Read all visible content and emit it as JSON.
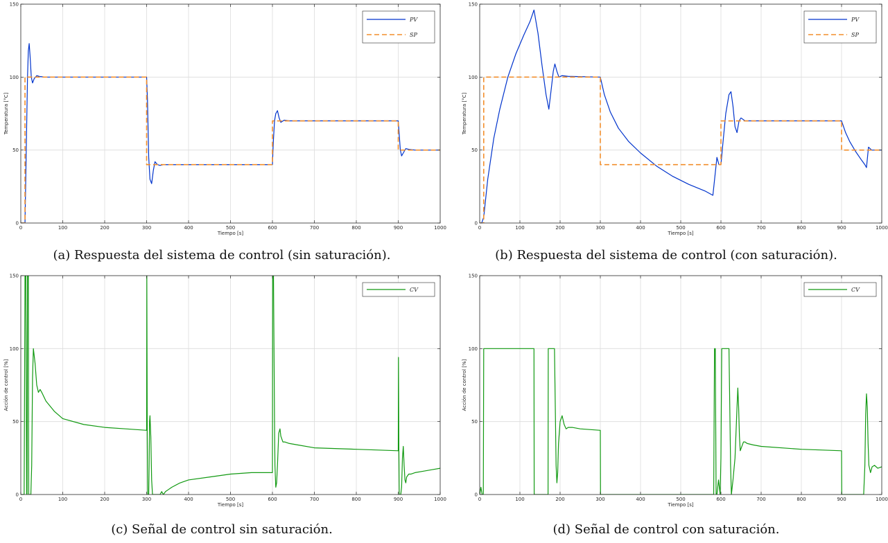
{
  "colors": {
    "pv": "#0033cc",
    "sp": "#f28e2b",
    "cv": "#119911"
  },
  "captions": [
    "(a) Respuesta del sistema de control (sin saturación).",
    "(b) Respuesta del sistema de control (con saturación).",
    "(c) Señal de control sin saturación.",
    "(d) Señal de control con saturación."
  ],
  "chart_data": [
    {
      "type": "line",
      "xlabel": "Tiempo [s]",
      "ylabel": "Temperatura [°C]",
      "xlim": [
        0,
        1000
      ],
      "ylim": [
        0,
        150
      ],
      "xticks": [
        0,
        100,
        200,
        300,
        400,
        500,
        600,
        700,
        800,
        900,
        1000
      ],
      "yticks": [
        0,
        50,
        100,
        150
      ],
      "grid": true,
      "legend": "top-right",
      "series": [
        {
          "name": "PV",
          "style": "solid",
          "color": "pv",
          "x": [
            0,
            10,
            13,
            16,
            18,
            20,
            22,
            25,
            28,
            32,
            38,
            45,
            60,
            300,
            302,
            305,
            308,
            312,
            316,
            320,
            326,
            332,
            340,
            600,
            602,
            605,
            608,
            612,
            616,
            620,
            628,
            640,
            900,
            902,
            905,
            908,
            912,
            918,
            925,
            940,
            1000
          ],
          "y": [
            0,
            0,
            50,
            100,
            118,
            123,
            115,
            100,
            96,
            99,
            101,
            100.4,
            100,
            100,
            85,
            45,
            30,
            27,
            36,
            42,
            40,
            39.5,
            40,
            40,
            55,
            70,
            75,
            77,
            72,
            69,
            70.5,
            70,
            70,
            62,
            50,
            46,
            48,
            51,
            50.5,
            50,
            50
          ]
        },
        {
          "name": "SP",
          "style": "dashed",
          "color": "sp",
          "x": [
            0,
            10,
            10,
            300,
            300,
            600,
            600,
            900,
            900,
            1000
          ],
          "y": [
            0,
            0,
            100,
            100,
            40,
            40,
            70,
            70,
            50,
            50
          ]
        }
      ]
    },
    {
      "type": "line",
      "xlabel": "Tiempo [s]",
      "ylabel": "Temperatura [°C]",
      "xlim": [
        0,
        1000
      ],
      "ylim": [
        0,
        150
      ],
      "xticks": [
        0,
        100,
        200,
        300,
        400,
        500,
        600,
        700,
        800,
        900,
        1000
      ],
      "yticks": [
        0,
        50,
        100,
        150
      ],
      "grid": true,
      "legend": "top-right",
      "series": [
        {
          "name": "PV",
          "style": "solid",
          "color": "pv",
          "x": [
            0,
            5,
            10,
            20,
            35,
            50,
            70,
            90,
            110,
            125,
            135,
            145,
            155,
            165,
            172,
            178,
            183,
            187,
            192,
            197,
            205,
            220,
            300,
            310,
            325,
            345,
            370,
            400,
            440,
            480,
            520,
            560,
            580,
            585,
            590,
            595,
            600,
            605,
            612,
            620,
            625,
            630,
            635,
            640,
            645,
            650,
            660,
            680,
            900,
            910,
            920,
            935,
            950,
            958,
            962,
            967,
            975,
            985,
            1000
          ],
          "y": [
            0,
            0,
            4,
            30,
            58,
            78,
            100,
            116,
            129,
            138,
            146,
            130,
            108,
            88,
            78,
            92,
            104,
            109,
            104,
            100,
            101,
            100.5,
            100,
            88,
            76,
            65,
            56,
            48,
            39,
            32,
            26.5,
            22,
            19,
            32,
            45,
            40,
            40,
            55,
            75,
            88,
            90,
            80,
            66,
            62,
            70,
            72,
            70,
            70,
            70,
            62,
            56,
            49,
            43,
            40,
            38,
            52,
            50,
            50,
            50
          ]
        },
        {
          "name": "SP",
          "style": "dashed",
          "color": "sp",
          "x": [
            0,
            10,
            10,
            300,
            300,
            600,
            600,
            900,
            900,
            1000
          ],
          "y": [
            0,
            0,
            100,
            100,
            40,
            40,
            70,
            70,
            50,
            50
          ]
        }
      ]
    },
    {
      "type": "line",
      "xlabel": "Tiempo [s]",
      "ylabel": "Acción de control [%]",
      "xlim": [
        0,
        1000
      ],
      "ylim": [
        0,
        150
      ],
      "xticks": [
        0,
        100,
        200,
        300,
        400,
        500,
        600,
        700,
        800,
        900,
        1000
      ],
      "yticks": [
        0,
        50,
        100,
        150
      ],
      "grid": true,
      "legend": "top-right",
      "series": [
        {
          "name": "CV",
          "style": "solid",
          "color": "cv",
          "x": [
            0,
            2,
            4,
            6,
            8,
            10,
            12,
            14,
            15,
            16,
            17,
            18,
            19,
            20,
            22,
            24,
            26,
            28,
            30,
            34,
            38,
            42,
            46,
            50,
            60,
            80,
            100,
            150,
            200,
            250,
            300,
            300.5,
            301.5,
            302.5,
            303.5,
            305,
            306,
            307,
            308,
            310,
            312,
            314,
            316,
            318,
            320,
            325,
            332,
            334,
            336,
            338,
            340,
            345,
            350,
            360,
            380,
            400,
            450,
            500,
            550,
            600,
            600.5,
            601.5,
            602.5,
            603,
            604,
            605,
            606,
            608,
            610,
            612,
            615,
            618,
            620,
            625,
            630,
            640,
            660,
            700,
            800,
            900,
            900.5,
            901.5,
            902.5,
            904,
            906,
            908,
            910,
            912,
            914,
            916,
            918,
            920,
            925,
            930,
            940,
            960,
            980,
            1000
          ],
          "y": [
            0,
            0,
            0,
            0,
            0,
            150,
            150,
            0,
            0,
            150,
            150,
            150,
            0,
            0,
            0,
            0,
            20,
            80,
            100,
            90,
            75,
            70,
            72,
            70,
            64,
            57,
            52,
            48,
            46,
            45,
            44,
            150,
            40,
            0,
            0,
            0,
            20,
            50,
            54,
            40,
            10,
            0,
            0,
            0,
            0,
            0,
            0,
            1,
            2,
            1,
            0,
            2,
            3,
            5,
            8,
            10,
            12,
            14,
            15,
            15,
            150,
            150,
            150,
            130,
            90,
            50,
            20,
            5,
            8,
            20,
            42,
            45,
            40,
            36,
            36,
            35,
            34,
            32,
            31,
            30,
            94,
            30,
            0,
            0,
            0,
            5,
            25,
            33,
            20,
            10,
            8,
            12,
            14,
            14,
            15,
            16,
            17,
            18
          ]
        }
      ]
    },
    {
      "type": "line",
      "xlabel": "Tiempo [s]",
      "ylabel": "Acción de control [%]",
      "xlim": [
        0,
        1000
      ],
      "ylim": [
        0,
        150
      ],
      "xticks": [
        0,
        100,
        200,
        300,
        400,
        500,
        600,
        700,
        800,
        900,
        1000
      ],
      "yticks": [
        0,
        50,
        100,
        150
      ],
      "grid": true,
      "legend": "top-right",
      "series": [
        {
          "name": "CV",
          "style": "solid",
          "color": "cv",
          "x": [
            0,
            3,
            6,
            9,
            10,
            11,
            135,
            135.5,
            170,
            170.5,
            174,
            178,
            180,
            182,
            184,
            186,
            188,
            190,
            192,
            194,
            196,
            200,
            205,
            210,
            215,
            220,
            230,
            250,
            300,
            300.5,
            580,
            582,
            584,
            586,
            588,
            590,
            592,
            594,
            596,
            598,
            600,
            602,
            604,
            620,
            622,
            624,
            626,
            630,
            635,
            640,
            642,
            644,
            646,
            648,
            652,
            656,
            660,
            665,
            680,
            700,
            800,
            900,
            900.5,
            955,
            958,
            960,
            962,
            964,
            966,
            968,
            972,
            976,
            982,
            990,
            1000
          ],
          "y": [
            0,
            5,
            0,
            0,
            100,
            100,
            100,
            0,
            0,
            100,
            100,
            100,
            100,
            100,
            100,
            100,
            60,
            20,
            8,
            15,
            35,
            50,
            54,
            48,
            45,
            46,
            46,
            45,
            44,
            0,
            0,
            0,
            100,
            100,
            0,
            0,
            5,
            10,
            5,
            0,
            25,
            100,
            100,
            100,
            60,
            20,
            0,
            10,
            25,
            60,
            73,
            60,
            40,
            30,
            33,
            36,
            36,
            35,
            34,
            33,
            31,
            30,
            0,
            0,
            20,
            55,
            69,
            60,
            35,
            20,
            15,
            19,
            20,
            18,
            19
          ]
        }
      ]
    }
  ]
}
